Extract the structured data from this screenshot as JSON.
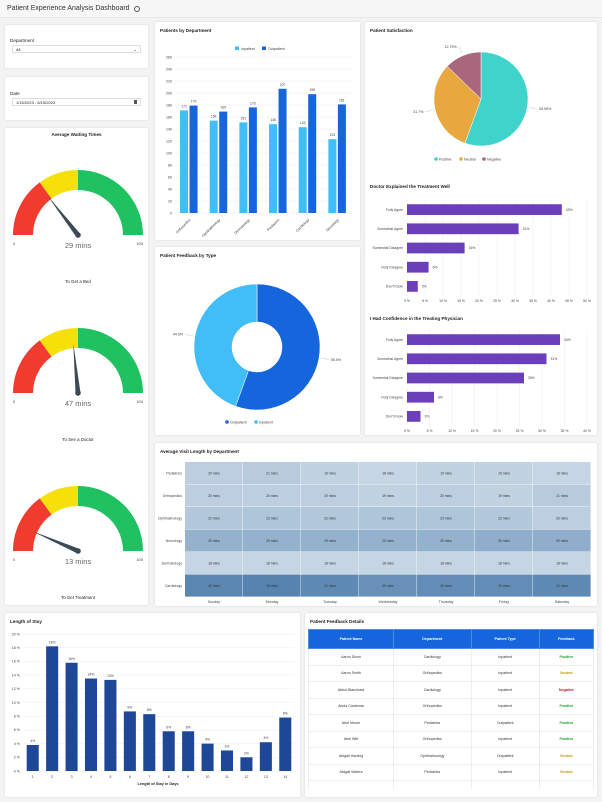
{
  "header": {
    "title": "Patient Experience Analysis Dashboard",
    "info_icon": "info-circle-icon"
  },
  "filters": {
    "department_label": "Department",
    "department_value": "All",
    "date_label": "Date",
    "date_value": "1/15/2023 - 6/15/2023"
  },
  "gauges": {
    "title": "Average Waiting Times",
    "min_label": "0",
    "max_label": "100",
    "bands": [
      {
        "from": 0,
        "to": 30,
        "color": "#f03b2e"
      },
      {
        "from": 30,
        "to": 50,
        "color": "#f7df0a"
      },
      {
        "from": 50,
        "to": 100,
        "color": "#1fc160"
      }
    ],
    "items": [
      {
        "value": 29,
        "value_label": "29 mins",
        "caption": "To Get a Bed"
      },
      {
        "value": 47,
        "value_label": "47 mins",
        "caption": "To See a Doctor"
      },
      {
        "value": 13,
        "value_label": "13 mins",
        "caption": "To Get Treatment"
      }
    ]
  },
  "chart_data": [
    {
      "id": "dept",
      "type": "bar",
      "title": "Patients by Department",
      "categories": [
        "Orthopedics",
        "Ophthalmology",
        "Dermatology",
        "Pediatrics",
        "Cardiology",
        "Neurology"
      ],
      "series": [
        {
          "name": "Inpatient",
          "values": [
            171,
            154,
            151,
            148,
            143,
            123
          ],
          "color": "#41bdf7"
        },
        {
          "name": "Outpatient",
          "values": [
            179,
            169,
            176,
            207,
            198,
            181
          ],
          "color": "#1565dc"
        }
      ],
      "ylim": [
        0,
        260
      ],
      "yticks": [
        0,
        20,
        40,
        60,
        80,
        100,
        120,
        140,
        160,
        180,
        200,
        220,
        240,
        260
      ],
      "legend": "top",
      "grid": true
    },
    {
      "id": "type",
      "type": "pie",
      "donut": true,
      "title": "Patient Feedback by Type",
      "slices": [
        {
          "name": "Outpatient",
          "value": 55.5,
          "label": "55.5%",
          "color": "#1565dc"
        },
        {
          "name": "Inpatient",
          "value": 44.5,
          "label": "44.5%",
          "color": "#41bdf7"
        }
      ],
      "legend": "bottom"
    },
    {
      "id": "sat",
      "type": "pie",
      "title": "Patient Satisfaction",
      "slices": [
        {
          "name": "Positive",
          "value": 55.55,
          "label": "55.55%",
          "color": "#3fd3cb"
        },
        {
          "name": "Neutral",
          "value": 31.7,
          "label": "31.7%",
          "color": "#e9a83f"
        },
        {
          "name": "Negative",
          "value": 12.75,
          "label": "12.75%",
          "color": "#a8677c"
        }
      ],
      "legend": "bottom"
    },
    {
      "id": "explained",
      "type": "bar",
      "orientation": "horizontal",
      "title": "Doctor Explained the Treatment Well",
      "categories": [
        "Fully Agree",
        "Somewhat Agree",
        "Somewhat Disagree",
        "Fully Disagree",
        "Don't Know"
      ],
      "values": [
        43,
        31,
        16,
        6,
        3
      ],
      "labels": [
        "43%",
        "31%",
        "16%",
        "6%",
        "3%"
      ],
      "xlim": [
        0,
        50
      ],
      "xticks": [
        "0 %",
        "5 %",
        "10 %",
        "15 %",
        "20 %",
        "25 %",
        "30 %",
        "35 %",
        "40 %",
        "45 %",
        "50 %"
      ],
      "color": "#6a3fb9"
    },
    {
      "id": "confidence",
      "type": "bar",
      "orientation": "horizontal",
      "title": "I Had Confidence in the Treating Physician",
      "categories": [
        "Fully Agree",
        "Somewhat Agree",
        "Somewhat Disagree",
        "Fully Disagree",
        "Don't Know"
      ],
      "values": [
        34,
        31,
        26,
        6,
        3
      ],
      "labels": [
        "34%",
        "31%",
        "26%",
        "6%",
        "3%"
      ],
      "xlim": [
        0,
        40
      ],
      "xticks": [
        "0 %",
        "5 %",
        "10 %",
        "15 %",
        "20 %",
        "25 %",
        "30 %",
        "35 %",
        "40 %"
      ],
      "color": "#6a3fb9"
    },
    {
      "id": "heat",
      "type": "heatmap",
      "title": "Average Visit Length by Department",
      "rows": [
        "Pediatrics",
        "Orthopedics",
        "Ophthalmology",
        "Neurology",
        "Dermatology",
        "Cardiology"
      ],
      "columns": [
        "Sunday",
        "Monday",
        "Tuesday",
        "Wednesday",
        "Thursday",
        "Friday",
        "Saturday"
      ],
      "values": [
        [
          20,
          21,
          19,
          18,
          19,
          19,
          18
        ],
        [
          20,
          20,
          20,
          19,
          20,
          19,
          21
        ],
        [
          22,
          23,
          22,
          23,
          23,
          22,
          20
        ],
        [
          29,
          29,
          29,
          29,
          29,
          30,
          30
        ],
        [
          18,
          18,
          18,
          18,
          18,
          18,
          18
        ],
        [
          42,
          43,
          41,
          39,
          40,
          40,
          41
        ]
      ],
      "unit": "mins",
      "color_low": "#c5d5e3",
      "color_high": "#5683b0"
    },
    {
      "id": "los",
      "type": "bar",
      "title": "Length of Stay",
      "xlabel": "Length of Stay in Days",
      "categories": [
        "1",
        "2",
        "3",
        "4",
        "5",
        "6",
        "7",
        "8",
        "9",
        "10",
        "11",
        "12",
        "13",
        "14"
      ],
      "values": [
        3.8,
        18.2,
        15.8,
        13.5,
        13.3,
        8.7,
        8.3,
        5.8,
        5.8,
        4.0,
        3.0,
        2.0,
        4.2,
        7.8
      ],
      "labels": [
        "4%",
        "18%",
        "16%",
        "14%",
        "13%",
        "9%",
        "8%",
        "6%",
        "6%",
        "4%",
        "3%",
        "2%",
        "4%",
        "8%"
      ],
      "ylim": [
        0,
        20
      ],
      "yticks": [
        "0 %",
        "2 %",
        "4 %",
        "6 %",
        "8 %",
        "10 %",
        "12 %",
        "14 %",
        "16 %",
        "18 %",
        "20 %"
      ],
      "color": "#1e4797",
      "grid": true
    }
  ],
  "table": {
    "title": "Patient Feedback Details",
    "columns": [
      "Patient Name",
      "Department",
      "Patient Type",
      "Feedback"
    ],
    "rows": [
      [
        "Aaron Dixon",
        "Cardiology",
        "Inpatient",
        "Positive"
      ],
      [
        "Aaron Smith",
        "Orthopedics",
        "Inpatient",
        "Neutral"
      ],
      [
        "Abbot Blanchard",
        "Cardiology",
        "Inpatient",
        "Negative"
      ],
      [
        "Abdul Cardenas",
        "Orthopedics",
        "Inpatient",
        "Positive"
      ],
      [
        "Abel Moore",
        "Pediatrics",
        "Outpatient",
        "Positive"
      ],
      [
        "Abel Witt",
        "Orthopedics",
        "Inpatient",
        "Positive"
      ],
      [
        "Abigail Harding",
        "Ophthalmology",
        "Outpatient",
        "Neutral"
      ],
      [
        "Abigail Waters",
        "Pediatrics",
        "Inpatient",
        "Neutral"
      ]
    ],
    "feedback_colors": {
      "Positive": "#1e9a33",
      "Neutral": "#c49a0c",
      "Negative": "#c8102e"
    }
  }
}
